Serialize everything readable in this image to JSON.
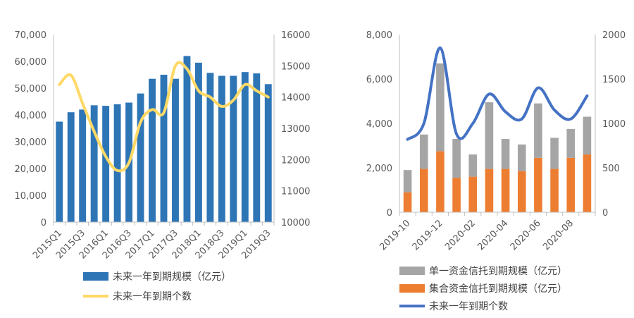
{
  "chart_data": [
    {
      "type": "bar",
      "categories": [
        "2015Q1",
        "2015Q2",
        "2015Q3",
        "2015Q4",
        "2016Q1",
        "2016Q2",
        "2016Q3",
        "2016Q4",
        "2017Q1",
        "2017Q2",
        "2017Q3",
        "2017Q4",
        "2018Q1",
        "2018Q2",
        "2018Q3",
        "2018Q4",
        "2019Q1",
        "2019Q2",
        "2019Q3"
      ],
      "x_tick_labels": [
        "2015Q1",
        "2015Q3",
        "2016Q1",
        "2016Q3",
        "2017Q1",
        "2017Q3",
        "2018Q1",
        "2018Q3",
        "2019Q1",
        "2019Q3"
      ],
      "ylim": [
        0,
        70000
      ],
      "y_ticks": [
        "0",
        "10,000",
        "20,000",
        "30,000",
        "40,000",
        "50,000",
        "60,000",
        "70,000"
      ],
      "y2lim": [
        10000,
        16000
      ],
      "y2_ticks": [
        "10000",
        "11000",
        "12000",
        "13000",
        "14000",
        "15000",
        "16000"
      ],
      "series": [
        {
          "name": "未来一年到期规模（亿元）",
          "type": "bar",
          "axis": "left",
          "color": "#2E75B6",
          "values": [
            37500,
            41000,
            42000,
            43600,
            43400,
            44000,
            44600,
            48000,
            53500,
            55000,
            53500,
            62000,
            59500,
            55700,
            54600,
            54600,
            56000,
            55500,
            51500
          ]
        },
        {
          "name": "未来一年到期个数",
          "type": "line",
          "axis": "right",
          "color": "#FFD966",
          "values": [
            14400,
            14700,
            13800,
            12900,
            12100,
            11650,
            11900,
            13200,
            13600,
            13500,
            15000,
            14900,
            14200,
            14000,
            13700,
            13900,
            14400,
            14200,
            14000
          ]
        }
      ]
    },
    {
      "type": "bar",
      "categories": [
        "2019-10",
        "2019-11",
        "2019-12",
        "2020-01",
        "2020-02",
        "2020-03",
        "2020-04",
        "2020-05",
        "2020-06",
        "2020-07",
        "2020-08",
        "2020-09"
      ],
      "x_tick_labels": [
        "2019-10",
        "2019-12",
        "2020-02",
        "2020-04",
        "2020-06",
        "2020-08"
      ],
      "stacked": true,
      "ylim": [
        0,
        8000
      ],
      "y_ticks": [
        "0",
        "2,000",
        "4,000",
        "6,000",
        "8,000"
      ],
      "y2lim": [
        0,
        2000
      ],
      "y2_ticks": [
        "0",
        "500",
        "1000",
        "1500",
        "2000"
      ],
      "series": [
        {
          "name": "单一资金信托到期规模（亿元）",
          "type": "bar",
          "axis": "left",
          "color": "#A5A5A5",
          "values": [
            1000,
            1550,
            3950,
            1750,
            1000,
            3000,
            1350,
            1200,
            2450,
            1400,
            1300,
            1700
          ]
        },
        {
          "name": "集合资金信托到期规模（亿元）",
          "type": "bar",
          "axis": "left",
          "color": "#ED7D31",
          "values": [
            900,
            1950,
            2750,
            1550,
            1600,
            1950,
            1950,
            1850,
            2450,
            1950,
            2450,
            2600
          ]
        },
        {
          "name": "未来一年到期个数",
          "type": "line",
          "axis": "right",
          "color": "#4472C4",
          "values": [
            820,
            1000,
            1850,
            880,
            1000,
            1330,
            1130,
            1050,
            1400,
            1150,
            1050,
            1310
          ]
        }
      ]
    }
  ]
}
